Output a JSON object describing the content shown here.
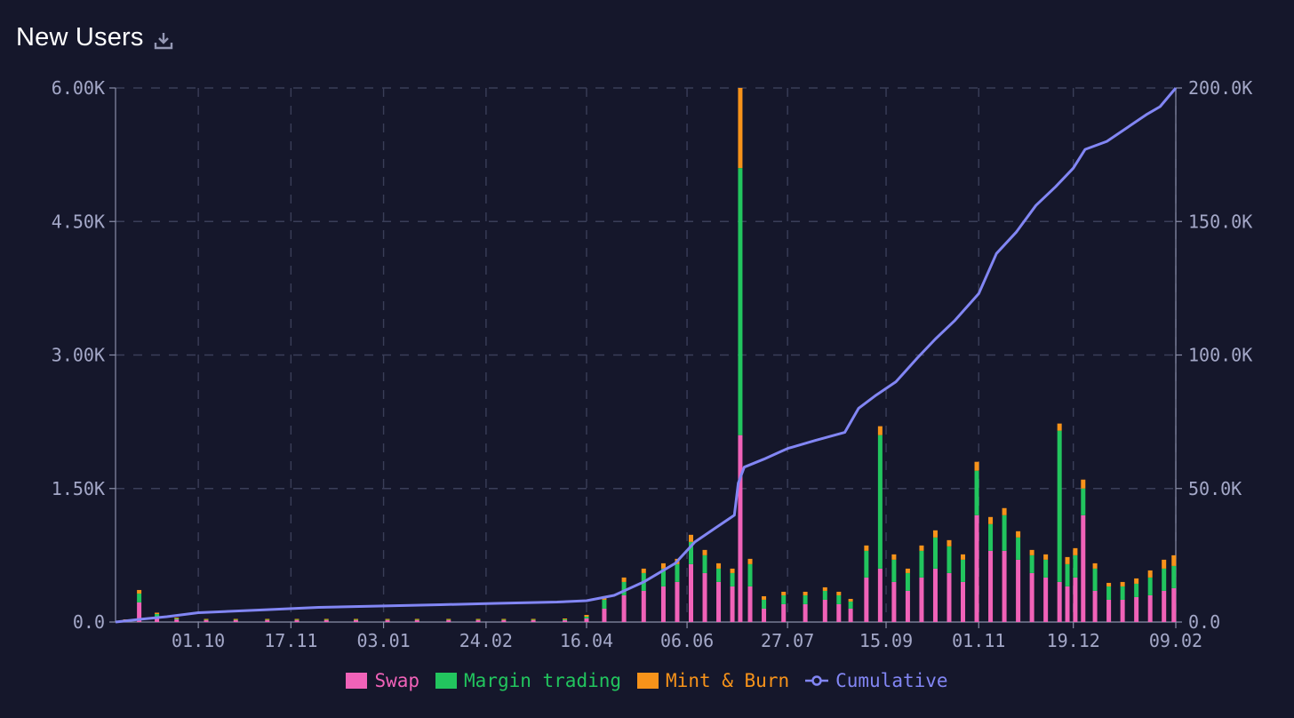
{
  "title": "New Users",
  "icons": {
    "download": "download-icon"
  },
  "colors": {
    "background": "#15172b",
    "swap": "#f062b8",
    "margin": "#22c55e",
    "mint": "#f7931a",
    "cumulative": "#8286f4",
    "axis_text": "#a4a8c8",
    "grid": "#3a3e58"
  },
  "legend": [
    {
      "key": "swap",
      "label": "Swap",
      "color": "#f062b8",
      "kind": "box"
    },
    {
      "key": "margin",
      "label": "Margin trading",
      "color": "#22c55e",
      "kind": "box"
    },
    {
      "key": "mint",
      "label": "Mint & Burn",
      "color": "#f7931a",
      "kind": "box"
    },
    {
      "key": "cumulative",
      "label": "Cumulative",
      "color": "#8286f4",
      "kind": "line"
    }
  ],
  "chart_data": {
    "type": "bar",
    "title": "New Users",
    "grid": true,
    "legend_position": "bottom-center",
    "x_range": [
      "2022-08-20",
      "2024-02-09"
    ],
    "x_ticks": [
      {
        "date": "2022-10-01",
        "label": "01.10"
      },
      {
        "date": "2022-11-17",
        "label": "17.11"
      },
      {
        "date": "2023-01-03",
        "label": "03.01"
      },
      {
        "date": "2023-02-24",
        "label": "24.02"
      },
      {
        "date": "2023-04-16",
        "label": "16.04"
      },
      {
        "date": "2023-06-06",
        "label": "06.06"
      },
      {
        "date": "2023-07-27",
        "label": "27.07"
      },
      {
        "date": "2023-09-15",
        "label": "15.09"
      },
      {
        "date": "2023-11-01",
        "label": "01.11"
      },
      {
        "date": "2023-12-19",
        "label": "19.12"
      },
      {
        "date": "2024-02-09",
        "label": "09.02"
      }
    ],
    "y_left": {
      "range": [
        0,
        6000
      ],
      "ticks": [
        0,
        1500,
        3000,
        4500,
        6000
      ],
      "tick_labels": [
        "0.0",
        "1.50K",
        "3.00K",
        "4.50K",
        "6.00K"
      ]
    },
    "y_right": {
      "range": [
        0,
        200000
      ],
      "ticks": [
        0,
        50000,
        100000,
        150000,
        200000
      ],
      "tick_labels": [
        "0.0",
        "50.0K",
        "100.0K",
        "150.0K",
        "200.0K"
      ]
    },
    "stack_order": [
      "swap",
      "margin",
      "mint"
    ],
    "series": [
      {
        "key": "swap",
        "name": "Swap",
        "axis": "left",
        "color": "#f062b8",
        "x": [
          "2022-08-25",
          "2022-09-01",
          "2022-09-10",
          "2022-09-20",
          "2022-10-05",
          "2022-10-20",
          "2022-11-05",
          "2022-11-20",
          "2022-12-05",
          "2022-12-20",
          "2023-01-05",
          "2023-01-20",
          "2023-02-05",
          "2023-02-20",
          "2023-03-05",
          "2023-03-20",
          "2023-04-05",
          "2023-04-16",
          "2023-04-25",
          "2023-05-05",
          "2023-05-15",
          "2023-05-25",
          "2023-06-01",
          "2023-06-08",
          "2023-06-15",
          "2023-06-22",
          "2023-06-29",
          "2023-07-03",
          "2023-07-08",
          "2023-07-15",
          "2023-07-25",
          "2023-08-05",
          "2023-08-15",
          "2023-08-22",
          "2023-08-28",
          "2023-09-05",
          "2023-09-12",
          "2023-09-19",
          "2023-09-26",
          "2023-10-03",
          "2023-10-10",
          "2023-10-17",
          "2023-10-24",
          "2023-10-31",
          "2023-11-07",
          "2023-11-14",
          "2023-11-21",
          "2023-11-28",
          "2023-12-05",
          "2023-12-12",
          "2023-12-16",
          "2023-12-20",
          "2023-12-24",
          "2023-12-30",
          "2024-01-06",
          "2024-01-13",
          "2024-01-20",
          "2024-01-27",
          "2024-02-03",
          "2024-02-08"
        ],
        "values": [
          20,
          220,
          60,
          30,
          20,
          20,
          20,
          20,
          20,
          20,
          20,
          20,
          20,
          20,
          20,
          20,
          20,
          40,
          150,
          300,
          350,
          400,
          450,
          650,
          550,
          450,
          400,
          2100,
          400,
          150,
          200,
          200,
          250,
          200,
          150,
          500,
          600,
          450,
          350,
          500,
          600,
          550,
          450,
          1200,
          800,
          800,
          700,
          550,
          500,
          450,
          400,
          500,
          1200,
          350,
          250,
          250,
          280,
          300,
          350,
          380
        ]
      },
      {
        "key": "margin",
        "name": "Margin trading",
        "axis": "left",
        "color": "#22c55e",
        "x": [
          "2022-08-25",
          "2022-09-01",
          "2022-09-10",
          "2022-09-20",
          "2022-10-05",
          "2022-10-20",
          "2022-11-05",
          "2022-11-20",
          "2022-12-05",
          "2022-12-20",
          "2023-01-05",
          "2023-01-20",
          "2023-02-05",
          "2023-02-20",
          "2023-03-05",
          "2023-03-20",
          "2023-04-05",
          "2023-04-16",
          "2023-04-25",
          "2023-05-05",
          "2023-05-15",
          "2023-05-25",
          "2023-06-01",
          "2023-06-08",
          "2023-06-15",
          "2023-06-22",
          "2023-06-29",
          "2023-07-03",
          "2023-07-08",
          "2023-07-15",
          "2023-07-25",
          "2023-08-05",
          "2023-08-15",
          "2023-08-22",
          "2023-08-28",
          "2023-09-05",
          "2023-09-12",
          "2023-09-19",
          "2023-09-26",
          "2023-10-03",
          "2023-10-10",
          "2023-10-17",
          "2023-10-24",
          "2023-10-31",
          "2023-11-07",
          "2023-11-14",
          "2023-11-21",
          "2023-11-28",
          "2023-12-05",
          "2023-12-12",
          "2023-12-16",
          "2023-12-20",
          "2023-12-24",
          "2023-12-30",
          "2024-01-06",
          "2024-01-13",
          "2024-01-20",
          "2024-01-27",
          "2024-02-03",
          "2024-02-08"
        ],
        "values": [
          5,
          100,
          30,
          10,
          5,
          5,
          5,
          5,
          5,
          5,
          5,
          5,
          5,
          5,
          5,
          5,
          10,
          20,
          100,
          150,
          200,
          200,
          200,
          250,
          200,
          150,
          150,
          3000,
          250,
          100,
          100,
          100,
          100,
          100,
          80,
          300,
          1500,
          250,
          200,
          300,
          350,
          300,
          250,
          500,
          300,
          400,
          250,
          200,
          200,
          1700,
          250,
          250,
          300,
          250,
          150,
          150,
          150,
          200,
          250,
          250
        ]
      },
      {
        "key": "mint",
        "name": "Mint & Burn",
        "axis": "left",
        "color": "#f7931a",
        "x": [
          "2022-08-25",
          "2022-09-01",
          "2022-09-10",
          "2022-09-20",
          "2022-10-05",
          "2022-10-20",
          "2022-11-05",
          "2022-11-20",
          "2022-12-05",
          "2022-12-20",
          "2023-01-05",
          "2023-01-20",
          "2023-02-05",
          "2023-02-20",
          "2023-03-05",
          "2023-03-20",
          "2023-04-05",
          "2023-04-16",
          "2023-04-25",
          "2023-05-05",
          "2023-05-15",
          "2023-05-25",
          "2023-06-01",
          "2023-06-08",
          "2023-06-15",
          "2023-06-22",
          "2023-06-29",
          "2023-07-03",
          "2023-07-08",
          "2023-07-15",
          "2023-07-25",
          "2023-08-05",
          "2023-08-15",
          "2023-08-22",
          "2023-08-28",
          "2023-09-05",
          "2023-09-12",
          "2023-09-19",
          "2023-09-26",
          "2023-10-03",
          "2023-10-10",
          "2023-10-17",
          "2023-10-24",
          "2023-10-31",
          "2023-11-07",
          "2023-11-14",
          "2023-11-21",
          "2023-11-28",
          "2023-12-05",
          "2023-12-12",
          "2023-12-16",
          "2023-12-20",
          "2023-12-24",
          "2023-12-30",
          "2024-01-06",
          "2024-01-13",
          "2024-01-20",
          "2024-01-27",
          "2024-02-03",
          "2024-02-08"
        ],
        "values": [
          5,
          40,
          15,
          10,
          10,
          10,
          10,
          10,
          10,
          10,
          10,
          10,
          10,
          10,
          10,
          10,
          10,
          20,
          40,
          50,
          50,
          60,
          60,
          80,
          60,
          60,
          50,
          900,
          60,
          40,
          40,
          40,
          40,
          40,
          30,
          60,
          100,
          60,
          50,
          60,
          80,
          70,
          60,
          100,
          80,
          80,
          70,
          60,
          60,
          80,
          80,
          80,
          100,
          60,
          40,
          50,
          60,
          80,
          100,
          120
        ]
      },
      {
        "key": "cumulative",
        "name": "Cumulative",
        "axis": "right",
        "color": "#8286f4",
        "type": "line",
        "x": [
          "2022-08-20",
          "2022-09-01",
          "2022-09-15",
          "2022-10-01",
          "2022-11-01",
          "2022-12-01",
          "2023-01-01",
          "2023-02-01",
          "2023-03-01",
          "2023-04-01",
          "2023-04-16",
          "2023-04-30",
          "2023-05-15",
          "2023-05-31",
          "2023-06-10",
          "2023-06-20",
          "2023-06-30",
          "2023-07-02",
          "2023-07-05",
          "2023-07-15",
          "2023-07-27",
          "2023-08-10",
          "2023-08-25",
          "2023-09-01",
          "2023-09-10",
          "2023-09-20",
          "2023-10-01",
          "2023-10-10",
          "2023-10-20",
          "2023-11-01",
          "2023-11-10",
          "2023-11-20",
          "2023-11-30",
          "2023-12-10",
          "2023-12-19",
          "2023-12-25",
          "2024-01-05",
          "2024-01-15",
          "2024-01-25",
          "2024-02-01",
          "2024-02-09"
        ],
        "values": [
          0,
          1000,
          2000,
          3500,
          4500,
          5500,
          6000,
          6500,
          7000,
          7500,
          8000,
          10000,
          15000,
          22000,
          30000,
          35000,
          40000,
          52000,
          58000,
          61000,
          65000,
          68000,
          71000,
          80000,
          85000,
          90000,
          99000,
          106000,
          113000,
          123000,
          138000,
          146000,
          156000,
          163000,
          170000,
          177000,
          180000,
          185000,
          190000,
          193000,
          200000
        ]
      }
    ]
  }
}
